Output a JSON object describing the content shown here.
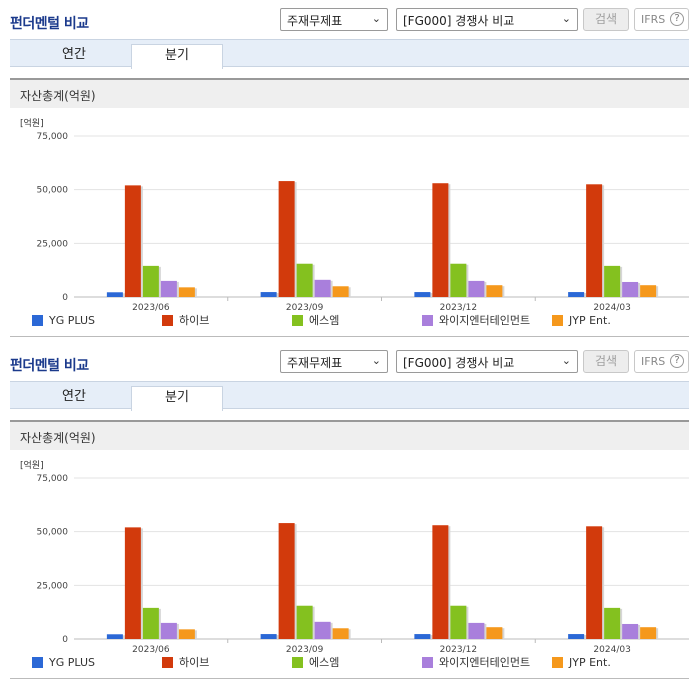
{
  "panels": [
    {
      "title": "펀더멘털 비교",
      "select1": "주재무제표",
      "select2": "[FG000] 경쟁사 비교",
      "search_label": "검색",
      "ifrs_label": "IFRS",
      "ifrs_help": "?",
      "tabs": [
        "연간",
        "분기"
      ],
      "active_tab": "분기",
      "section_title": "자산총계(억원)"
    },
    {
      "title": "펀더멘털 비교",
      "select1": "주재무제표",
      "select2": "[FG000] 경쟁사 비교",
      "search_label": "검색",
      "ifrs_label": "IFRS",
      "ifrs_help": "?",
      "tabs": [
        "연간",
        "분기"
      ],
      "active_tab": "분기",
      "section_title": "자산총계(억원)"
    }
  ],
  "chart_data": [
    {
      "type": "bar",
      "unit_label": "[억원]",
      "categories": [
        "2023/06",
        "2023/09",
        "2023/12",
        "2024/03"
      ],
      "ylim": [
        0,
        75000
      ],
      "yticks": [
        "0",
        "25,000",
        "50,000",
        "75,000"
      ],
      "ytick_values": [
        0,
        25000,
        50000,
        75000
      ],
      "series": [
        {
          "name": "YG PLUS",
          "color": "#2b68d6",
          "values": [
            2200,
            2300,
            2300,
            2300
          ]
        },
        {
          "name": "하이브",
          "color": "#d23a0c",
          "values": [
            52000,
            54000,
            53000,
            52500
          ]
        },
        {
          "name": "에스엠",
          "color": "#84c11f",
          "values": [
            14500,
            15500,
            15500,
            14500
          ]
        },
        {
          "name": "와이지엔터테인먼트",
          "color": "#a97fdc",
          "values": [
            7500,
            8000,
            7500,
            7000
          ]
        },
        {
          "name": "JYP Ent.",
          "color": "#f5981c",
          "values": [
            4500,
            5000,
            5500,
            5500
          ]
        }
      ]
    },
    {
      "type": "bar",
      "unit_label": "[억원]",
      "categories": [
        "2023/06",
        "2023/09",
        "2023/12",
        "2024/03"
      ],
      "ylim": [
        0,
        75000
      ],
      "yticks": [
        "0",
        "25,000",
        "50,000",
        "75,000"
      ],
      "ytick_values": [
        0,
        25000,
        50000,
        75000
      ],
      "series": [
        {
          "name": "YG PLUS",
          "color": "#2b68d6",
          "values": [
            2200,
            2300,
            2300,
            2300
          ]
        },
        {
          "name": "하이브",
          "color": "#d23a0c",
          "values": [
            52000,
            54000,
            53000,
            52500
          ]
        },
        {
          "name": "에스엠",
          "color": "#84c11f",
          "values": [
            14500,
            15500,
            15500,
            14500
          ]
        },
        {
          "name": "와이지엔터테인먼트",
          "color": "#a97fdc",
          "values": [
            7500,
            8000,
            7500,
            7000
          ]
        },
        {
          "name": "JYP Ent.",
          "color": "#f5981c",
          "values": [
            4500,
            5000,
            5500,
            5500
          ]
        }
      ]
    }
  ]
}
